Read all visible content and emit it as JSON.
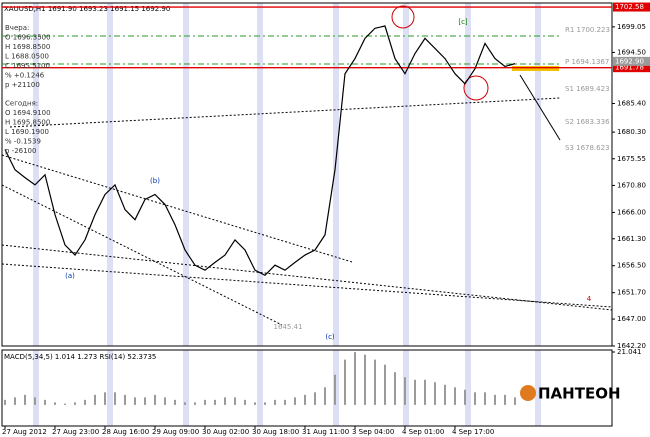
{
  "chart_data": [
    {
      "type": "line",
      "title": "XAUUSD,H1  1691.90 1693.23 1691.15 1692.90",
      "categories": [
        "27 Aug 2012",
        null,
        null,
        null,
        null,
        "27 Aug 23:00",
        null,
        null,
        null,
        null,
        "28 Aug 16:00",
        null,
        null,
        null,
        null,
        "29 Aug 09:00",
        null,
        null,
        null,
        null,
        "30 Aug 02:00",
        null,
        null,
        null,
        null,
        "30 Aug 18:00",
        null,
        null,
        null,
        null,
        "31 Aug 11:00",
        null,
        null,
        null,
        null,
        "3 Sep 04:00",
        null,
        null,
        null,
        null,
        "4 Sep 01:00",
        null,
        null,
        null,
        null,
        "4 Sep 17:00",
        null,
        null,
        null,
        null,
        null,
        null
      ],
      "values": [
        1677.2,
        1673.6,
        1672.2,
        1670.9,
        1672.7,
        1665.6,
        1660.2,
        1658.4,
        1661.1,
        1665.6,
        1669.2,
        1670.9,
        1666.5,
        1664.7,
        1668.3,
        1669.2,
        1667.4,
        1663.8,
        1659.3,
        1656.6,
        1655.7,
        1657.1,
        1658.4,
        1661.1,
        1659.3,
        1655.7,
        1654.8,
        1656.6,
        1655.7,
        1657.1,
        1658.4,
        1659.3,
        1662.0,
        1673.6,
        1690.7,
        1693.4,
        1697.0,
        1698.8,
        1699.2,
        1693.4,
        1690.7,
        1694.3,
        1697.0,
        1695.2,
        1693.4,
        1690.7,
        1688.9,
        1691.6,
        1696.1,
        1693.4,
        1692.0,
        1692.5
      ],
      "color": "#000000",
      "ylim": [
        1642.2,
        1703.3
      ],
      "yticks": [
        1699.05,
        {
          "value": 1694.5,
          "label": "1694.50"
        },
        {
          "value": 1685.4,
          "label": "1685.40"
        },
        {
          "value": 1680.3,
          "label": "1680.30"
        },
        1675.55,
        {
          "value": 1670.8,
          "label": "1670.80"
        },
        {
          "value": 1666,
          "label": "1666.00"
        },
        {
          "value": 1661.3,
          "label": "1661.30"
        },
        {
          "value": 1656.5,
          "label": "1656.50"
        },
        {
          "value": 1651.7,
          "label": "1651.70"
        },
        {
          "value": 1647,
          "label": "1647.00"
        },
        {
          "value": 1642.2,
          "label": "1642.20"
        }
      ],
      "hlines": [
        {
          "value": 1702.58,
          "color": "#e00000"
        },
        {
          "value": 1691.78,
          "color": "#e00000"
        },
        {
          "value": 1692.9,
          "label": "1692.90",
          "color": "#9a9a9a"
        }
      ],
      "pivots": [
        "R1 1700.223",
        "P 1694.1367",
        "S1 1689.423",
        "S2 1683.336",
        "S3 1678.623"
      ],
      "info_lines": [
        "Вчера:",
        "O 1696.3500",
        "H 1698.8500",
        "L 1688.0500",
        "C 1695.5100",
        "% +0.1246",
        "p +21100",
        "Сегодня:",
        "O 1694.9100",
        "H 1695.8500",
        "L 1690.1900",
        "% -0.1539",
        "p -26100"
      ],
      "annotations": [
        "(a)",
        "(b)",
        "(c)",
        "[c]",
        "4",
        "1645.41"
      ]
    },
    {
      "type": "bar",
      "title": "MACD(5,34,5) 1.014 1.273  RSI(14) 52.3735",
      "values": [
        2,
        3,
        4,
        3,
        2,
        1,
        0.5,
        1,
        2,
        4,
        5,
        5,
        4,
        3,
        3,
        4,
        3,
        2,
        1,
        1,
        2,
        2,
        3,
        3,
        2,
        1,
        1,
        2,
        2,
        3,
        4,
        5,
        7,
        12,
        18,
        21,
        20,
        18,
        16,
        13,
        11,
        10,
        10,
        9,
        8,
        7,
        6,
        5,
        5,
        4,
        4,
        3
      ],
      "color": "#9a9a9a",
      "ylim": [
        -8,
        21.041
      ],
      "yticks": [
        21.041
      ],
      "logo": "ПАНТЕОН"
    }
  ]
}
